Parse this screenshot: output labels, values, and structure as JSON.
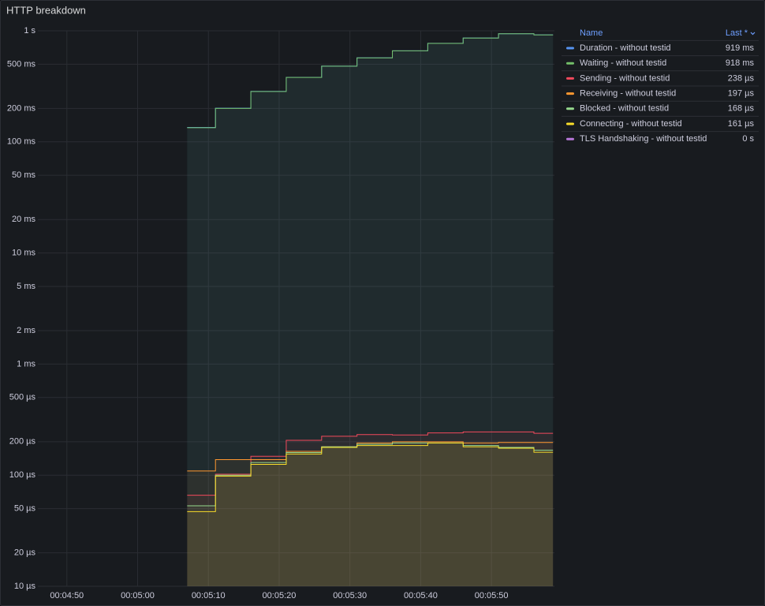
{
  "chart_data": {
    "type": "line",
    "title": "HTTP breakdown",
    "line_interpolation": "stepAfter",
    "yscale": "log",
    "grid": true,
    "legend": {
      "position": "right",
      "columns": [
        "Name",
        "Last *"
      ]
    },
    "x": [
      307,
      311,
      316,
      321,
      326,
      331,
      336,
      341,
      346,
      351,
      356,
      358.7
    ],
    "xlim": [
      285.9,
      358.9
    ],
    "xticks": [
      {
        "value": 290,
        "label": "00:04:50"
      },
      {
        "value": 300,
        "label": "00:05:00"
      },
      {
        "value": 310,
        "label": "00:05:10"
      },
      {
        "value": 320,
        "label": "00:05:20"
      },
      {
        "value": 330,
        "label": "00:05:30"
      },
      {
        "value": 340,
        "label": "00:05:40"
      },
      {
        "value": 350,
        "label": "00:05:50"
      }
    ],
    "ylim": [
      1e-05,
      1
    ],
    "yticks": [
      {
        "value": 1,
        "label": "1 s"
      },
      {
        "value": 0.5,
        "label": "500 ms"
      },
      {
        "value": 0.2,
        "label": "200 ms"
      },
      {
        "value": 0.1,
        "label": "100 ms"
      },
      {
        "value": 0.05,
        "label": "50 ms"
      },
      {
        "value": 0.02,
        "label": "20 ms"
      },
      {
        "value": 0.01,
        "label": "10 ms"
      },
      {
        "value": 0.005,
        "label": "5 ms"
      },
      {
        "value": 0.002,
        "label": "2 ms"
      },
      {
        "value": 0.001,
        "label": "1 ms"
      },
      {
        "value": 0.0005,
        "label": "500 µs"
      },
      {
        "value": 0.0002,
        "label": "200 µs"
      },
      {
        "value": 0.0001,
        "label": "100 µs"
      },
      {
        "value": 5e-05,
        "label": "50 µs"
      },
      {
        "value": 2e-05,
        "label": "20 µs"
      },
      {
        "value": 1e-05,
        "label": "10 µs"
      }
    ],
    "series": [
      {
        "name": "Duration - without testid",
        "color": "#5794f2",
        "last": {
          "value": 0.919,
          "label": "919 ms"
        },
        "values": [
          0.135,
          0.201,
          0.285,
          0.381,
          0.481,
          0.571,
          0.661,
          0.771,
          0.861,
          0.941,
          0.919,
          0.919
        ]
      },
      {
        "name": "Waiting - without testid",
        "color": "#73bf69",
        "last": {
          "value": 0.918,
          "label": "918 ms"
        },
        "values": [
          0.134,
          0.2,
          0.284,
          0.38,
          0.48,
          0.57,
          0.66,
          0.77,
          0.86,
          0.94,
          0.918,
          0.918
        ]
      },
      {
        "name": "Sending - without testid",
        "color": "#f2495c",
        "last": {
          "value": 0.000238,
          "label": "238 µs"
        },
        "values": [
          6.6e-05,
          0.000102,
          0.000148,
          0.000206,
          0.000224,
          0.000232,
          0.00023,
          0.00024,
          0.000245,
          0.000245,
          0.000238,
          0.000238
        ]
      },
      {
        "name": "Receiving - without testid",
        "color": "#ff9830",
        "last": {
          "value": 0.000197,
          "label": "197 µs"
        },
        "values": [
          0.000109,
          0.000138,
          0.000138,
          0.000164,
          0.00018,
          0.000195,
          0.0002,
          0.0002,
          0.000195,
          0.000197,
          0.000197,
          0.000197
        ]
      },
      {
        "name": "Blocked - without testid",
        "color": "#96d98d",
        "last": {
          "value": 0.000168,
          "label": "168 µs"
        },
        "values": [
          5.3e-05,
          0.0001,
          0.00013,
          0.00016,
          0.00018,
          0.00019,
          0.000195,
          0.000195,
          0.000185,
          0.000178,
          0.000168,
          0.000168
        ]
      },
      {
        "name": "Connecting - without testid",
        "color": "#fade2a",
        "last": {
          "value": 0.000161,
          "label": "161 µs"
        },
        "values": [
          4.7e-05,
          9.8e-05,
          0.000125,
          0.000155,
          0.000178,
          0.000185,
          0.000185,
          0.000195,
          0.00018,
          0.000175,
          0.000161,
          0.000161
        ]
      },
      {
        "name": "TLS Handshaking - without testid",
        "color": "#b877d9",
        "last": {
          "value": 0,
          "label": "0 s"
        },
        "values": [
          null,
          null,
          null,
          null,
          null,
          null,
          null,
          null,
          null,
          null,
          null,
          null
        ]
      }
    ]
  }
}
